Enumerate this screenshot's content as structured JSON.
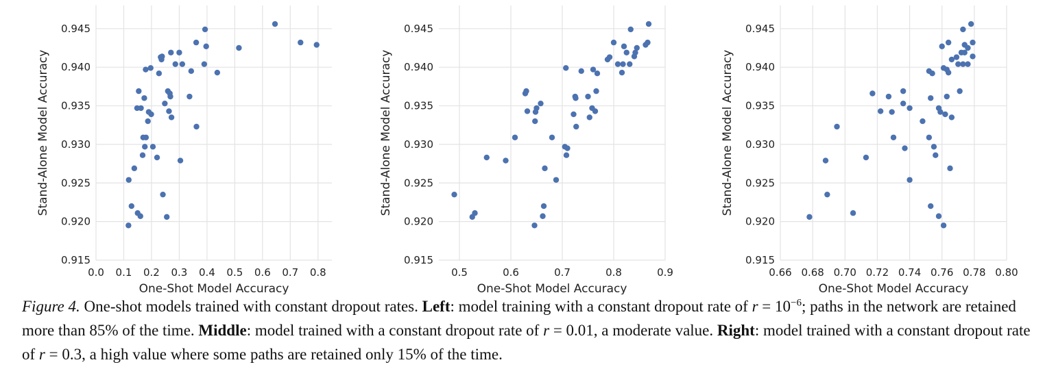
{
  "chart_data": [
    {
      "type": "scatter",
      "xlabel": "One-Shot Model Accuracy",
      "ylabel": "Stand-Alone Model Accuracy",
      "xlim": [
        0.0,
        0.85
      ],
      "ylim": [
        0.915,
        0.948
      ],
      "xticks": [
        "0.0",
        "0.1",
        "0.2",
        "0.3",
        "0.4",
        "0.5",
        "0.6",
        "0.7",
        "0.8"
      ],
      "yticks": [
        "0.915",
        "0.920",
        "0.925",
        "0.930",
        "0.935",
        "0.940",
        "0.945"
      ],
      "grid": true,
      "color": "#4c72b0",
      "points": [
        [
          0.117,
          0.9195
        ],
        [
          0.118,
          0.9254
        ],
        [
          0.128,
          0.922
        ],
        [
          0.138,
          0.9269
        ],
        [
          0.15,
          0.9211
        ],
        [
          0.16,
          0.9207
        ],
        [
          0.168,
          0.9286
        ],
        [
          0.17,
          0.9309
        ],
        [
          0.176,
          0.9297
        ],
        [
          0.18,
          0.9309
        ],
        [
          0.148,
          0.9347
        ],
        [
          0.154,
          0.9369
        ],
        [
          0.162,
          0.9347
        ],
        [
          0.174,
          0.936
        ],
        [
          0.179,
          0.9397
        ],
        [
          0.187,
          0.933
        ],
        [
          0.19,
          0.9342
        ],
        [
          0.197,
          0.9399
        ],
        [
          0.199,
          0.9339
        ],
        [
          0.205,
          0.9297
        ],
        [
          0.22,
          0.9283
        ],
        [
          0.227,
          0.9392
        ],
        [
          0.233,
          0.9413
        ],
        [
          0.236,
          0.941
        ],
        [
          0.238,
          0.9414
        ],
        [
          0.241,
          0.9235
        ],
        [
          0.248,
          0.9353
        ],
        [
          0.255,
          0.9206
        ],
        [
          0.259,
          0.9369
        ],
        [
          0.263,
          0.9343
        ],
        [
          0.266,
          0.9366
        ],
        [
          0.268,
          0.9362
        ],
        [
          0.27,
          0.9419
        ],
        [
          0.272,
          0.9335
        ],
        [
          0.286,
          0.9404
        ],
        [
          0.3,
          0.9419
        ],
        [
          0.304,
          0.9279
        ],
        [
          0.311,
          0.9404
        ],
        [
          0.337,
          0.9362
        ],
        [
          0.343,
          0.9395
        ],
        [
          0.361,
          0.9432
        ],
        [
          0.362,
          0.9323
        ],
        [
          0.39,
          0.9404
        ],
        [
          0.393,
          0.9449
        ],
        [
          0.397,
          0.9427
        ],
        [
          0.437,
          0.9393
        ],
        [
          0.515,
          0.9425
        ],
        [
          0.645,
          0.9456
        ],
        [
          0.737,
          0.9432
        ],
        [
          0.795,
          0.9429
        ]
      ]
    },
    {
      "type": "scatter",
      "xlabel": "One-Shot Model Accuracy",
      "ylabel": "Stand-Alone Model Accuracy",
      "xlim": [
        0.46,
        0.9
      ],
      "ylim": [
        0.915,
        0.948
      ],
      "xticks": [
        "0.5",
        "0.6",
        "0.7",
        "0.8",
        "0.9"
      ],
      "yticks": [
        "0.915",
        "0.920",
        "0.925",
        "0.930",
        "0.935",
        "0.940",
        "0.945"
      ],
      "grid": true,
      "color": "#4c72b0",
      "points": [
        [
          0.49,
          0.9235
        ],
        [
          0.525,
          0.9206
        ],
        [
          0.53,
          0.9211
        ],
        [
          0.553,
          0.9283
        ],
        [
          0.59,
          0.9279
        ],
        [
          0.608,
          0.9309
        ],
        [
          0.628,
          0.9366
        ],
        [
          0.63,
          0.9369
        ],
        [
          0.632,
          0.9343
        ],
        [
          0.646,
          0.9195
        ],
        [
          0.647,
          0.933
        ],
        [
          0.648,
          0.9342
        ],
        [
          0.65,
          0.9347
        ],
        [
          0.658,
          0.9353
        ],
        [
          0.662,
          0.9207
        ],
        [
          0.664,
          0.922
        ],
        [
          0.666,
          0.9269
        ],
        [
          0.68,
          0.9309
        ],
        [
          0.688,
          0.9254
        ],
        [
          0.705,
          0.9297
        ],
        [
          0.707,
          0.9399
        ],
        [
          0.708,
          0.9286
        ],
        [
          0.71,
          0.9295
        ],
        [
          0.722,
          0.9339
        ],
        [
          0.725,
          0.9362
        ],
        [
          0.726,
          0.936
        ],
        [
          0.727,
          0.9323
        ],
        [
          0.737,
          0.9395
        ],
        [
          0.75,
          0.9362
        ],
        [
          0.753,
          0.9335
        ],
        [
          0.758,
          0.9347
        ],
        [
          0.76,
          0.9397
        ],
        [
          0.764,
          0.9343
        ],
        [
          0.766,
          0.9369
        ],
        [
          0.768,
          0.9392
        ],
        [
          0.788,
          0.941
        ],
        [
          0.792,
          0.9413
        ],
        [
          0.8,
          0.9432
        ],
        [
          0.808,
          0.9404
        ],
        [
          0.816,
          0.9393
        ],
        [
          0.818,
          0.9404
        ],
        [
          0.82,
          0.9427
        ],
        [
          0.825,
          0.9419
        ],
        [
          0.831,
          0.9404
        ],
        [
          0.833,
          0.9449
        ],
        [
          0.84,
          0.9414
        ],
        [
          0.842,
          0.9419
        ],
        [
          0.845,
          0.9425
        ],
        [
          0.862,
          0.9429
        ],
        [
          0.866,
          0.9432
        ],
        [
          0.868,
          0.9456
        ]
      ]
    },
    {
      "type": "scatter",
      "xlabel": "One-Shot Model Accuracy",
      "ylabel": "Stand-Alone Model Accuracy",
      "xlim": [
        0.66,
        0.8
      ],
      "ylim": [
        0.915,
        0.948
      ],
      "xticks": [
        "0.66",
        "0.68",
        "0.70",
        "0.72",
        "0.74",
        "0.76",
        "0.78",
        "0.80"
      ],
      "yticks": [
        "0.915",
        "0.920",
        "0.925",
        "0.930",
        "0.935",
        "0.940",
        "0.945"
      ],
      "grid": true,
      "color": "#4c72b0",
      "points": [
        [
          0.678,
          0.9206
        ],
        [
          0.688,
          0.9279
        ],
        [
          0.689,
          0.9235
        ],
        [
          0.695,
          0.9323
        ],
        [
          0.705,
          0.9211
        ],
        [
          0.713,
          0.9283
        ],
        [
          0.717,
          0.9366
        ],
        [
          0.722,
          0.9343
        ],
        [
          0.727,
          0.9362
        ],
        [
          0.729,
          0.9342
        ],
        [
          0.73,
          0.9309
        ],
        [
          0.736,
          0.9369
        ],
        [
          0.736,
          0.9353
        ],
        [
          0.737,
          0.9295
        ],
        [
          0.74,
          0.9254
        ],
        [
          0.74,
          0.9347
        ],
        [
          0.748,
          0.933
        ],
        [
          0.752,
          0.9309
        ],
        [
          0.752,
          0.9395
        ],
        [
          0.753,
          0.922
        ],
        [
          0.753,
          0.936
        ],
        [
          0.754,
          0.9392
        ],
        [
          0.755,
          0.9297
        ],
        [
          0.756,
          0.9286
        ],
        [
          0.758,
          0.9347
        ],
        [
          0.758,
          0.9207
        ],
        [
          0.759,
          0.9342
        ],
        [
          0.76,
          0.9427
        ],
        [
          0.761,
          0.9195
        ],
        [
          0.761,
          0.9399
        ],
        [
          0.762,
          0.9339
        ],
        [
          0.763,
          0.9362
        ],
        [
          0.763,
          0.9397
        ],
        [
          0.764,
          0.9432
        ],
        [
          0.764,
          0.9393
        ],
        [
          0.765,
          0.9269
        ],
        [
          0.766,
          0.9335
        ],
        [
          0.766,
          0.941
        ],
        [
          0.769,
          0.9413
        ],
        [
          0.77,
          0.9404
        ],
        [
          0.771,
          0.9369
        ],
        [
          0.772,
          0.9419
        ],
        [
          0.773,
          0.9449
        ],
        [
          0.773,
          0.9404
        ],
        [
          0.774,
          0.9429
        ],
        [
          0.774,
          0.9419
        ],
        [
          0.776,
          0.9404
        ],
        [
          0.776,
          0.9425
        ],
        [
          0.778,
          0.9456
        ],
        [
          0.779,
          0.9432
        ],
        [
          0.779,
          0.9414
        ]
      ]
    }
  ],
  "caption": {
    "label": "Figure 4.",
    "intro": "One-shot models trained with constant dropout rates.",
    "left_head": "Left",
    "left_text_1": ": model training with a constant dropout rate of",
    "left_math": "r",
    "left_eq": "= 10",
    "left_exp": "−6",
    "left_text_2": "; paths in the network are retained more than 85% of the time.",
    "middle_head": "Middle",
    "middle_text_1": ": model trained with a constant dropout rate of",
    "middle_math": "r",
    "middle_eq": "= 0.01",
    "middle_text_2": ", a moderate value.",
    "right_head": "Right",
    "right_text_1": ": model trained with a constant dropout rate of",
    "right_math": "r",
    "right_eq": "= 0.3",
    "right_text_2": ", a high value where some paths are retained only 15% of the time."
  }
}
